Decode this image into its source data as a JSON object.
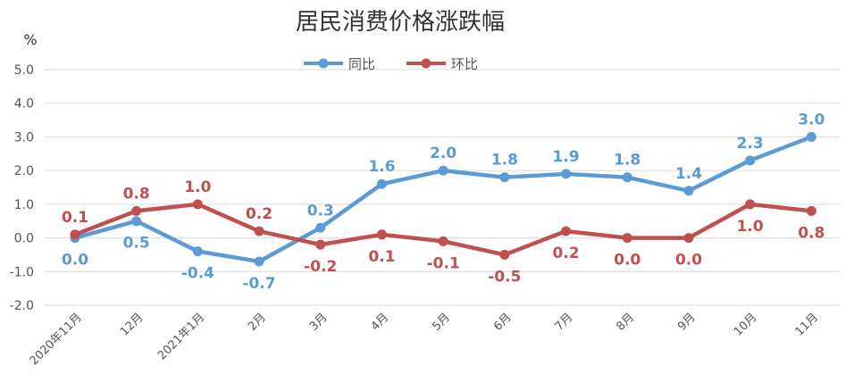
{
  "chart_data": {
    "type": "line",
    "title": "居民消费价格涨跌幅",
    "ylabel": "%",
    "ylim": [
      -2.0,
      5.0
    ],
    "yticks": [
      "5.0",
      "4.0",
      "3.0",
      "2.0",
      "1.0",
      "0.0",
      "-1.0",
      "-2.0"
    ],
    "grid": true,
    "legend": "top-center",
    "categories": [
      "2020年11月",
      "12月",
      "2021年1月",
      "2月",
      "3月",
      "4月",
      "5月",
      "6月",
      "7月",
      "8月",
      "9月",
      "10月",
      "11月"
    ],
    "series": [
      {
        "name": "同比",
        "color": "#5b9bd5",
        "values": [
          0.0,
          0.5,
          -0.4,
          -0.7,
          0.3,
          1.6,
          2.0,
          1.8,
          1.9,
          1.8,
          1.4,
          2.3,
          3.0
        ],
        "labels": [
          "0.0",
          "0.5",
          "-0.4",
          "-0.7",
          "0.3",
          "1.6",
          "2.0",
          "1.8",
          "1.9",
          "1.8",
          "1.4",
          "2.3",
          "3.0"
        ]
      },
      {
        "name": "环比",
        "color": "#c0504d",
        "values": [
          0.1,
          0.8,
          1.0,
          0.2,
          -0.2,
          0.1,
          -0.1,
          -0.5,
          0.2,
          0.0,
          0.0,
          1.0,
          0.8
        ],
        "labels": [
          "0.1",
          "0.8",
          "1.0",
          "0.2",
          "-0.2",
          "0.1",
          "-0.1",
          "-0.5",
          "0.2",
          "0.0",
          "0.0",
          "1.0",
          "0.8"
        ]
      }
    ]
  }
}
